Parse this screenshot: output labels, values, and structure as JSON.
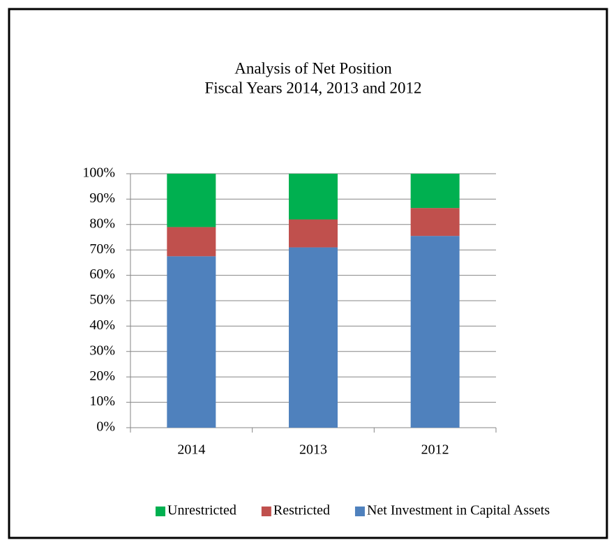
{
  "chart_data": {
    "type": "stacked_bar",
    "title": "Analysis of Net Position",
    "subtitle": "Fiscal Years 2014, 2013 and 2012",
    "categories": [
      "2014",
      "2013",
      "2012"
    ],
    "series": [
      {
        "name": "Net Investment in Capital Assets",
        "color": "#4f81bd",
        "values": [
          67.5,
          71,
          75.5
        ]
      },
      {
        "name": "Restricted",
        "color": "#c0504d",
        "values": [
          11.5,
          11,
          11
        ]
      },
      {
        "name": "Unrestricted",
        "color": "#00b050",
        "values": [
          21,
          18,
          13.5
        ]
      }
    ],
    "ylim": [
      0,
      100
    ],
    "yticks": [
      {
        "value": 0,
        "label": "0%"
      },
      {
        "value": 10,
        "label": "10%"
      },
      {
        "value": 20,
        "label": "20%"
      },
      {
        "value": 30,
        "label": "30%"
      },
      {
        "value": 40,
        "label": "40%"
      },
      {
        "value": 50,
        "label": "50%"
      },
      {
        "value": 60,
        "label": "60%"
      },
      {
        "value": 70,
        "label": "70%"
      },
      {
        "value": 80,
        "label": "80%"
      },
      {
        "value": 90,
        "label": "90%"
      },
      {
        "value": 100,
        "label": "100%"
      }
    ],
    "grid": true,
    "legend": "bottom"
  }
}
